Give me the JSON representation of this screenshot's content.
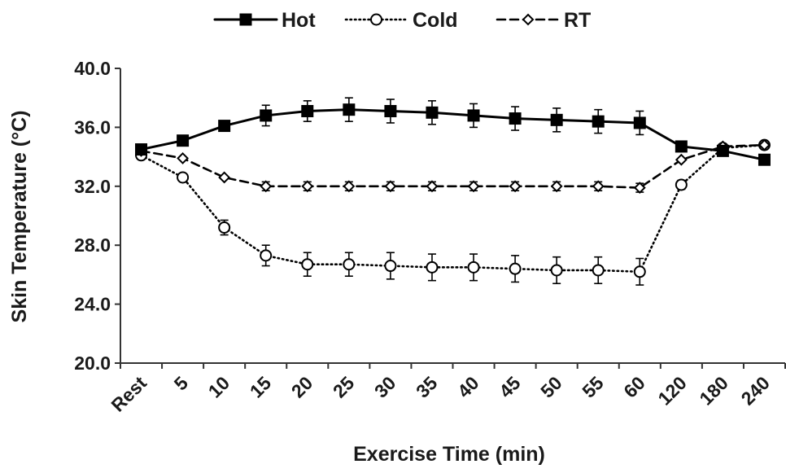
{
  "chart_data": {
    "type": "line",
    "title": "",
    "xlabel": "Exercise Time (min)",
    "ylabel": "Skin Temperature (°C)",
    "ylim": [
      20.0,
      40.0
    ],
    "yticks": [
      "20.0",
      "24.0",
      "28.0",
      "32.0",
      "36.0",
      "40.0"
    ],
    "categories": [
      "Rest",
      "5",
      "10",
      "15",
      "20",
      "25",
      "30",
      "35",
      "40",
      "45",
      "50",
      "55",
      "60",
      "120",
      "180",
      "240"
    ],
    "grid": false,
    "legend_position": "top-center",
    "series": [
      {
        "name": "Hot",
        "style": "solid",
        "marker": "filled-square",
        "color": "#000000",
        "values": [
          34.5,
          35.1,
          36.1,
          36.8,
          37.1,
          37.2,
          37.1,
          37.0,
          36.8,
          36.6,
          36.5,
          36.4,
          36.3,
          34.7,
          34.4,
          33.8
        ],
        "errors": [
          0.0,
          0.0,
          0.3,
          0.7,
          0.7,
          0.8,
          0.8,
          0.8,
          0.8,
          0.8,
          0.8,
          0.8,
          0.8,
          0.0,
          0.0,
          0.0
        ]
      },
      {
        "name": "Cold",
        "style": "dotted",
        "marker": "open-circle",
        "color": "#000000",
        "values": [
          34.1,
          32.6,
          29.2,
          27.3,
          26.7,
          26.7,
          26.6,
          26.5,
          26.5,
          26.4,
          26.3,
          26.3,
          26.2,
          32.1,
          34.6,
          34.8
        ],
        "errors": [
          0.0,
          0.2,
          0.5,
          0.7,
          0.8,
          0.8,
          0.9,
          0.9,
          0.9,
          0.9,
          0.9,
          0.9,
          0.9,
          0.3,
          0.0,
          0.0
        ]
      },
      {
        "name": "RT",
        "style": "dashed",
        "marker": "open-diamond",
        "color": "#000000",
        "values": [
          34.4,
          33.9,
          32.6,
          32.0,
          32.0,
          32.0,
          32.0,
          32.0,
          32.0,
          32.0,
          32.0,
          32.0,
          31.9,
          33.8,
          34.7,
          34.8
        ],
        "errors": [
          0.0,
          0.0,
          0.0,
          0.3,
          0.3,
          0.3,
          0.3,
          0.3,
          0.3,
          0.3,
          0.3,
          0.3,
          0.3,
          0.0,
          0.0,
          0.0
        ]
      }
    ]
  }
}
